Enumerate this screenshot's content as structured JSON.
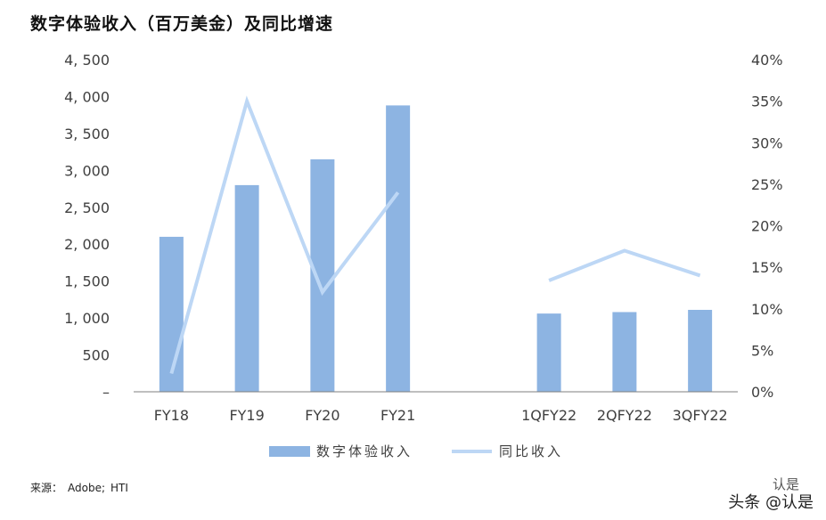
{
  "title": "数字体验收入（百万美金）及同比增速",
  "source": {
    "label": "来源：",
    "items": [
      "Adobe;",
      "HTI"
    ]
  },
  "watermark": {
    "text": "头条 @认是",
    "top_text": "认是"
  },
  "colors": {
    "bar": "#8DB4E2",
    "line": "#BDD7F5",
    "axis": "#7F7F7F",
    "text": "#404040"
  },
  "chart_data": {
    "type": "bar",
    "categories": [
      "FY18",
      "FY19",
      "FY20",
      "FY21",
      "",
      "1QFY22",
      "2QFY22",
      "3QFY22"
    ],
    "series": [
      {
        "name": "数字体验收入",
        "type": "bar",
        "axis": "left",
        "values": [
          2100,
          2800,
          3150,
          3880,
          null,
          1060,
          1080,
          1110
        ]
      },
      {
        "name": "同比收入",
        "type": "line",
        "axis": "right",
        "segments": [
          [
            0,
            3
          ],
          [
            5,
            7
          ]
        ],
        "values": [
          2.2,
          35.0,
          12.0,
          24.0,
          null,
          13.4,
          17.0,
          14.0
        ]
      }
    ],
    "y_left": {
      "ticks": [
        "–",
        "500",
        "1, 000",
        "1, 500",
        "2, 000",
        "2, 500",
        "3, 000",
        "3, 500",
        "4, 000",
        "4, 500"
      ],
      "lim": [
        0,
        4500
      ]
    },
    "y_right": {
      "ticks": [
        "0%",
        "5%",
        "10%",
        "15%",
        "20%",
        "25%",
        "30%",
        "35%",
        "40%"
      ],
      "lim": [
        0,
        40
      ]
    },
    "legend": "bottom",
    "grid": false
  }
}
